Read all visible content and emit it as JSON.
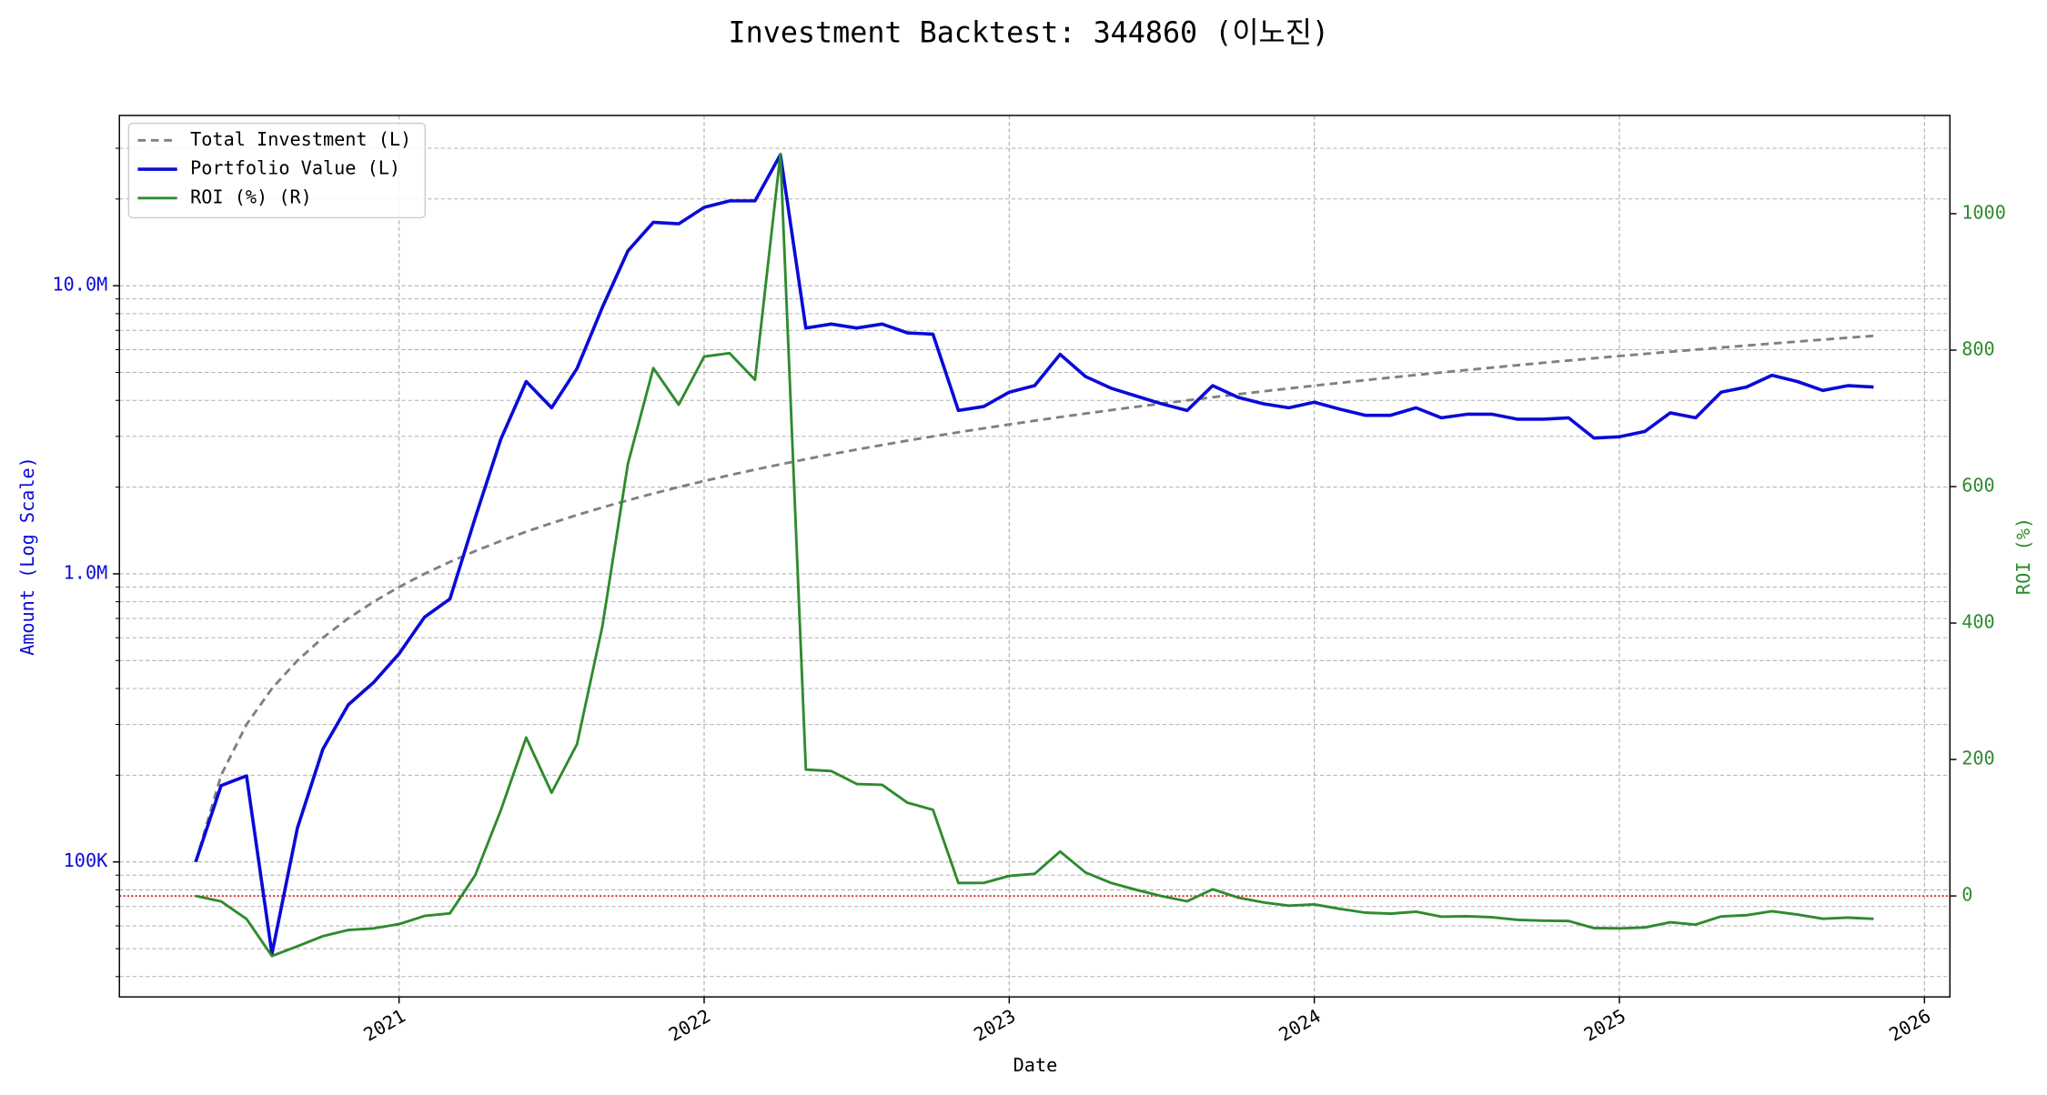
{
  "chart_data": {
    "type": "line",
    "title": "Investment Backtest: 344860 (이노진)",
    "xlabel": "Date",
    "ylabel": "Amount (Log Scale)",
    "y2label": "ROI (%)",
    "x": [
      "2020-05",
      "2020-06",
      "2020-07",
      "2020-08",
      "2020-09",
      "2020-10",
      "2020-11",
      "2020-12",
      "2021-01",
      "2021-02",
      "2021-03",
      "2021-04",
      "2021-05",
      "2021-06",
      "2021-07",
      "2021-08",
      "2021-09",
      "2021-10",
      "2021-11",
      "2021-12",
      "2022-01",
      "2022-02",
      "2022-03",
      "2022-04",
      "2022-05",
      "2022-06",
      "2022-07",
      "2022-08",
      "2022-09",
      "2022-10",
      "2022-11",
      "2022-12",
      "2023-01",
      "2023-02",
      "2023-03",
      "2023-04",
      "2023-05",
      "2023-06",
      "2023-07",
      "2023-08",
      "2023-09",
      "2023-10",
      "2023-11",
      "2023-12",
      "2024-01",
      "2024-02",
      "2024-03",
      "2024-04",
      "2024-05",
      "2024-06",
      "2024-07",
      "2024-08",
      "2024-09",
      "2024-10",
      "2024-11",
      "2024-12",
      "2025-01",
      "2025-02",
      "2025-03",
      "2025-04",
      "2025-05",
      "2025-06",
      "2025-07",
      "2025-08",
      "2025-09",
      "2025-10",
      "2025-11"
    ],
    "series": [
      {
        "name": "Total Investment (L)",
        "color": "#808080",
        "dashed": true,
        "width": 2,
        "axis": "y",
        "values": [
          100000,
          200000,
          300000,
          400000,
          500000,
          600000,
          700000,
          800000,
          900000,
          1000000,
          1100000,
          1200000,
          1300000,
          1400000,
          1500000,
          1600000,
          1700000,
          1800000,
          1900000,
          2000000,
          2100000,
          2200000,
          2300000,
          2400000,
          2500000,
          2600000,
          2700000,
          2800000,
          2900000,
          3000000,
          3100000,
          3200000,
          3300000,
          3400000,
          3500000,
          3600000,
          3700000,
          3800000,
          3900000,
          4000000,
          4100000,
          4200000,
          4300000,
          4400000,
          4500000,
          4600000,
          4700000,
          4800000,
          4900000,
          5000000,
          5100000,
          5200000,
          5300000,
          5400000,
          5500000,
          5600000,
          5700000,
          5800000,
          5900000,
          6000000,
          6100000,
          6200000,
          6300000,
          6400000,
          6500000,
          6600000,
          6700000
        ]
      },
      {
        "name": "Portfolio Value (L)",
        "color": "#0a0ad8",
        "dashed": false,
        "width": 2.5,
        "axis": "y",
        "values": [
          100000,
          184000,
          199000,
          48000,
          131000,
          246000,
          351000,
          420000,
          528000,
          707000,
          818000,
          1570000,
          2930000,
          4650000,
          3770000,
          5160000,
          8430000,
          13200000,
          16600000,
          16400000,
          18700000,
          19700000,
          19700000,
          28500000,
          7130000,
          7360000,
          7130000,
          7360000,
          6860000,
          6790000,
          3690000,
          3810000,
          4270000,
          4500000,
          5780000,
          4840000,
          4410000,
          4140000,
          3890000,
          3690000,
          4500000,
          4100000,
          3890000,
          3770000,
          3940000,
          3730000,
          3550000,
          3550000,
          3770000,
          3480000,
          3580000,
          3580000,
          3440000,
          3440000,
          3480000,
          2960000,
          2990000,
          3120000,
          3620000,
          3480000,
          4270000,
          4450000,
          4890000,
          4650000,
          4330000,
          4500000,
          4450000
        ]
      },
      {
        "name": "ROI (%) (R)",
        "color": "#2e8b2e",
        "dashed": false,
        "width": 2,
        "axis": "y2",
        "values": [
          0,
          -8,
          -33.7,
          -88,
          -73.8,
          -59,
          -49.9,
          -47.5,
          -41.3,
          -29.3,
          -25.6,
          30.8,
          125.4,
          232.1,
          151.3,
          222.5,
          395.9,
          633.3,
          773.7,
          720,
          790.5,
          795.5,
          756.5,
          1087.5,
          185.2,
          183.1,
          164.1,
          162.9,
          136.6,
          126.3,
          19,
          19.1,
          29.4,
          32.4,
          65.1,
          34.4,
          19.2,
          8.9,
          -0.3,
          -7.8,
          9.8,
          -2.4,
          -9.5,
          -14.3,
          -12.4,
          -18.9,
          -24.5,
          -26,
          -23.1,
          -30.4,
          -29.8,
          -31.2,
          -35.1,
          -36.3,
          -36.7,
          -47.1,
          -47.5,
          -46.2,
          -38.6,
          -42,
          -30,
          -28.2,
          -22.4,
          -27.3,
          -33.4,
          -31.8,
          -33.6
        ]
      }
    ],
    "xlim": [
      "2020-02",
      "2026-02"
    ],
    "xticks": [
      {
        "value": "2021-01",
        "label": "2021"
      },
      {
        "value": "2022-01",
        "label": "2022"
      },
      {
        "value": "2023-01",
        "label": "2023"
      },
      {
        "value": "2024-01",
        "label": "2024"
      },
      {
        "value": "2025-01",
        "label": "2025"
      },
      {
        "value": "2026-01",
        "label": "2026"
      }
    ],
    "ylim": [
      34000,
      39000000
    ],
    "ylog": true,
    "yticks": [
      {
        "value": 100000,
        "label": "100K"
      },
      {
        "value": 1000000,
        "label": "1.0M"
      },
      {
        "value": 10000000,
        "label": "10.0M"
      }
    ],
    "yminorticks": [
      40000,
      50000,
      60000,
      70000,
      80000,
      90000,
      200000,
      300000,
      400000,
      500000,
      600000,
      700000,
      800000,
      900000,
      2000000,
      3000000,
      4000000,
      5000000,
      6000000,
      7000000,
      8000000,
      9000000,
      20000000,
      30000000
    ],
    "y2lim": [
      -148,
      1144
    ],
    "y2ticks": [
      0,
      200,
      400,
      600,
      800,
      1000
    ],
    "y2_hline": {
      "value": 0,
      "color": "#e00000"
    },
    "ylabel_color": "#0a0ad8",
    "y2label_color": "#2e8b2e",
    "grid": true,
    "legend": "upper left"
  }
}
